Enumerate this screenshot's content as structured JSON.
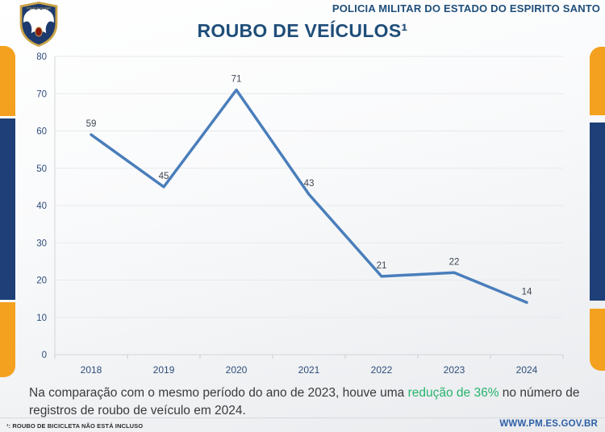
{
  "header": {
    "org_name": "POLICIA MILITAR DO ESTADO DO ESPIRITO SANTO"
  },
  "title": "ROUBO DE VEÍCULOS¹",
  "chart_data": {
    "type": "line",
    "title": "ROUBO DE VEÍCULOS¹",
    "categories": [
      "2018",
      "2019",
      "2020",
      "2021",
      "2022",
      "2023",
      "2024"
    ],
    "values": [
      59,
      45,
      71,
      43,
      21,
      22,
      14
    ],
    "xlabel": "",
    "ylabel": "",
    "ylim": [
      0,
      80
    ],
    "ytick_step": 10,
    "yticks": [
      0,
      10,
      20,
      30,
      40,
      50,
      60,
      70,
      80
    ],
    "grid": true,
    "legend": "none",
    "line_color": "#4a7ebb",
    "data_label_color": "#3f4652",
    "axis_label_color": "#2e4d7b",
    "gridline_color": "#e6e9ec"
  },
  "summary": {
    "text_before": "Na comparação com o mesmo período do ano de 2023, houve uma ",
    "highlight": "redução de 36%",
    "text_after": " no número de registros de roubo de veículo em 2024.",
    "highlight_color": "#25b46e"
  },
  "footer": {
    "footnote": "¹: ROUBO DE BICICLETA NÃO ESTÁ INCLUSO",
    "website": "WWW.PM.ES.GOV.BR"
  },
  "colors": {
    "navy": "#1e3f77",
    "orange": "#f3a11f",
    "title_blue": "#1f4e79"
  }
}
